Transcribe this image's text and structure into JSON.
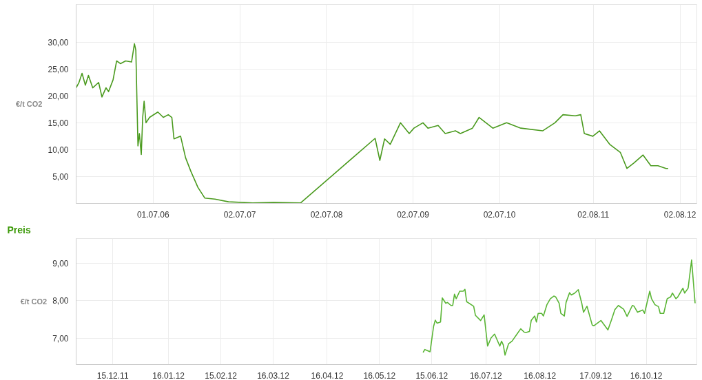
{
  "chart_data": [
    {
      "type": "line",
      "ylabel": "€/t CO2",
      "xlim": [
        "2005-08-10",
        "2012-10-12"
      ],
      "ylim": [
        0,
        37
      ],
      "xticks": [
        {
          "value": "2006-07-01",
          "label": "01.07.06"
        },
        {
          "value": "2007-07-02",
          "label": "02.07.07"
        },
        {
          "value": "2008-07-02",
          "label": "02.07.08"
        },
        {
          "value": "2009-07-02",
          "label": "02.07.09"
        },
        {
          "value": "2010-07-02",
          "label": "02.07.10"
        },
        {
          "value": "2011-08-02",
          "label": "02.08.11"
        },
        {
          "value": "2012-08-02",
          "label": "02.08.12"
        }
      ],
      "yticks": [
        {
          "value": 5,
          "label": "5,00"
        },
        {
          "value": 10,
          "label": "10,00"
        },
        {
          "value": 15,
          "label": "15,00"
        },
        {
          "value": 20,
          "label": "20,00"
        },
        {
          "value": 25,
          "label": "25,00"
        },
        {
          "value": 30,
          "label": "30,00"
        }
      ],
      "grid": true,
      "marker": "none",
      "line_style": "solid",
      "series": [
        {
          "color": "#4a9a1e",
          "x": [
            "2005-08-10",
            "2005-08-22",
            "2005-09-04",
            "2005-09-18",
            "2005-10-01",
            "2005-10-19",
            "2005-11-13",
            "2005-11-27",
            "2005-12-14",
            "2005-12-25",
            "2006-01-13",
            "2006-01-28",
            "2006-02-13",
            "2006-03-07",
            "2006-04-01",
            "2006-04-13",
            "2006-04-19",
            "2006-04-28",
            "2006-05-04",
            "2006-05-12",
            "2006-05-18",
            "2006-05-24",
            "2006-06-01",
            "2006-06-16",
            "2006-07-21",
            "2006-08-13",
            "2006-09-03",
            "2006-09-18",
            "2006-09-27",
            "2006-10-25",
            "2006-11-15",
            "2006-12-07",
            "2007-01-06",
            "2007-02-04",
            "2007-03-19",
            "2007-05-15",
            "2007-08-25",
            "2007-11-21",
            "2008-03-15",
            "2009-01-23",
            "2009-02-12",
            "2009-03-04",
            "2009-03-28",
            "2009-05-10",
            "2009-06-16",
            "2009-07-06",
            "2009-08-13",
            "2009-09-03",
            "2009-10-16",
            "2009-11-15",
            "2009-12-28",
            "2010-01-18",
            "2010-03-10",
            "2010-04-07",
            "2010-06-04",
            "2010-08-01",
            "2010-09-30",
            "2010-12-31",
            "2011-02-21",
            "2011-03-27",
            "2011-05-18",
            "2011-06-10",
            "2011-06-25",
            "2011-07-31",
            "2011-08-28",
            "2011-10-10",
            "2011-11-24",
            "2011-12-22",
            "2012-01-20",
            "2012-02-28",
            "2012-04-01",
            "2012-05-01",
            "2012-06-04",
            "2012-06-13"
          ],
          "values": [
            21.5,
            22.5,
            24.2,
            22,
            23.8,
            21.5,
            22.5,
            19.8,
            21.5,
            20.8,
            23,
            26.5,
            26,
            26.5,
            26.3,
            29.7,
            28.5,
            10.7,
            13,
            9.1,
            16,
            19,
            15,
            16,
            17,
            16,
            16.5,
            16,
            12,
            12.5,
            8.5,
            6,
            3,
            1,
            0.8,
            0.3,
            0.1,
            0.2,
            0.1,
            12.1,
            8,
            12,
            11,
            15,
            13,
            14,
            15,
            14,
            14.5,
            13,
            13.5,
            13,
            14,
            16,
            14,
            15,
            14,
            13.5,
            15,
            16.5,
            16.3,
            16.5,
            13,
            12.5,
            13.5,
            11,
            9.5,
            6.5,
            7.5,
            9,
            7,
            7,
            6.5,
            6.5
          ]
        }
      ]
    },
    {
      "type": "line",
      "title": "Preis",
      "ylabel": "€/t CO2",
      "xlim": [
        "2011-11-24",
        "2012-11-14"
      ],
      "ylim": [
        6.3,
        9.65
      ],
      "xticks": [
        {
          "value": "2011-12-15",
          "label": "15.12.11"
        },
        {
          "value": "2012-01-16",
          "label": "16.01.12"
        },
        {
          "value": "2012-02-15",
          "label": "15.02.12"
        },
        {
          "value": "2012-03-16",
          "label": "16.03.12"
        },
        {
          "value": "2012-04-16",
          "label": "16.04.12"
        },
        {
          "value": "2012-05-16",
          "label": "16.05.12"
        },
        {
          "value": "2012-06-15",
          "label": "15.06.12"
        },
        {
          "value": "2012-07-16",
          "label": "16.07.12"
        },
        {
          "value": "2012-08-16",
          "label": "16.08.12"
        },
        {
          "value": "2012-09-17",
          "label": "17.09.12"
        },
        {
          "value": "2012-10-16",
          "label": "16.10.12"
        }
      ],
      "yticks": [
        {
          "value": 7,
          "label": "7,00"
        },
        {
          "value": 8,
          "label": "8,00"
        },
        {
          "value": 9,
          "label": "9,00"
        }
      ],
      "grid": true,
      "marker": "none",
      "line_style": "solid",
      "series": [
        {
          "color": "#5ab535",
          "x": [
            "2012-06-10",
            "2012-06-11",
            "2012-06-14",
            "2012-06-16",
            "2012-06-17",
            "2012-06-18",
            "2012-06-20",
            "2012-06-21",
            "2012-06-23",
            "2012-06-24",
            "2012-06-26",
            "2012-06-27",
            "2012-06-28",
            "2012-06-29",
            "2012-07-01",
            "2012-07-03",
            "2012-07-04",
            "2012-07-05",
            "2012-07-09",
            "2012-07-10",
            "2012-07-13",
            "2012-07-15",
            "2012-07-17",
            "2012-07-19",
            "2012-07-21",
            "2012-07-24",
            "2012-07-25",
            "2012-07-26",
            "2012-07-27",
            "2012-07-29",
            "2012-07-31",
            "2012-08-03",
            "2012-08-05",
            "2012-08-07",
            "2012-08-08",
            "2012-08-10",
            "2012-08-11",
            "2012-08-13",
            "2012-08-14",
            "2012-08-15",
            "2012-08-17",
            "2012-08-18",
            "2012-08-20",
            "2012-08-22",
            "2012-08-24",
            "2012-08-25",
            "2012-08-27",
            "2012-08-28",
            "2012-08-30",
            "2012-08-31",
            "2012-09-02",
            "2012-09-03",
            "2012-09-05",
            "2012-09-07",
            "2012-09-09",
            "2012-09-10",
            "2012-09-12",
            "2012-09-15",
            "2012-09-16",
            "2012-09-20",
            "2012-09-24",
            "2012-09-26",
            "2012-09-28",
            "2012-09-30",
            "2012-10-03",
            "2012-10-05",
            "2012-10-08",
            "2012-10-09",
            "2012-10-11",
            "2012-10-14",
            "2012-10-15",
            "2012-10-18",
            "2012-10-19",
            "2012-10-21",
            "2012-10-23",
            "2012-10-24",
            "2012-10-26",
            "2012-10-28",
            "2012-10-30",
            "2012-10-31",
            "2012-11-02",
            "2012-11-03",
            "2012-11-05",
            "2012-11-06",
            "2012-11-07",
            "2012-11-09",
            "2012-11-11",
            "2012-11-13"
          ],
          "values": [
            6.62,
            6.7,
            6.64,
            7.31,
            7.48,
            7.4,
            7.43,
            8.07,
            7.93,
            7.95,
            7.87,
            7.87,
            8.17,
            8.05,
            8.25,
            8.25,
            8.3,
            7.97,
            7.85,
            7.61,
            7.47,
            7.62,
            6.79,
            7.01,
            7.11,
            6.79,
            6.92,
            6.82,
            6.55,
            6.85,
            6.92,
            7.12,
            7.25,
            7.16,
            7.15,
            7.18,
            7.47,
            7.59,
            7.43,
            7.66,
            7.66,
            7.59,
            7.89,
            8.05,
            8.12,
            8.1,
            7.93,
            7.66,
            7.59,
            7.95,
            8.21,
            8.15,
            8.2,
            8.29,
            7.93,
            7.69,
            7.85,
            7.35,
            7.33,
            7.47,
            7.22,
            7.48,
            7.76,
            7.87,
            7.77,
            7.58,
            7.87,
            7.85,
            7.69,
            7.75,
            7.66,
            8.25,
            8.05,
            7.89,
            7.84,
            7.66,
            7.66,
            8.05,
            8.1,
            8.2,
            8.05,
            8.09,
            8.25,
            8.33,
            8.2,
            8.33,
            9.08,
            7.93
          ]
        }
      ]
    }
  ]
}
